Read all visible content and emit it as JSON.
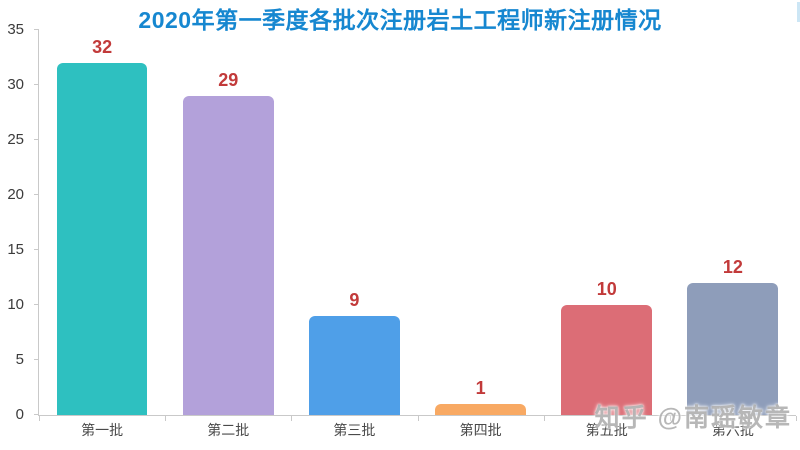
{
  "title": "2020年第一季度各批次注册岩土工程师新注册情况",
  "title_color": "#1687d0",
  "watermark": "知乎 @南瑶敏章",
  "chart_data": {
    "type": "bar",
    "title": "2020年第一季度各批次注册岩土工程师新注册情况",
    "categories": [
      "第一批",
      "第二批",
      "第三批",
      "第四批",
      "第五批",
      "第六批"
    ],
    "values": [
      32,
      29,
      9,
      1,
      10,
      12
    ],
    "bar_colors": [
      "#2ec0c0",
      "#b3a1da",
      "#4f9fe8",
      "#f8a963",
      "#dc6d76",
      "#8e9dba"
    ],
    "value_label_color": "#c23a3a",
    "xlabel": "",
    "ylabel": "",
    "ylim": [
      0,
      35
    ],
    "yticks": [
      0,
      5,
      10,
      15,
      20,
      25,
      30,
      35
    ],
    "grid": false,
    "legend": "none",
    "axis_color": "#c9c9c9"
  }
}
